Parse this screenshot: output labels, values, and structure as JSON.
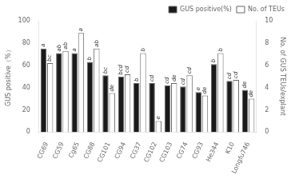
{
  "chart_data": {
    "type": "bar",
    "categories": [
      "CG69",
      "CG59",
      "Cg65",
      "CG88",
      "CG101",
      "CG94",
      "CG37",
      "CG102",
      "CG103",
      "CG74",
      "CG93",
      "He344",
      "K10",
      "Longfu746"
    ],
    "series": [
      {
        "name": "GUS positive(%)",
        "color": "#1a1a1a",
        "values": [
          75,
          71,
          71,
          63,
          51,
          50,
          44,
          44,
          42,
          41,
          36,
          61,
          46,
          38
        ],
        "annotations": [
          "a",
          "ab",
          "a",
          "b",
          "bc",
          "bcd",
          "b",
          "cd",
          "cd",
          "cd",
          "e",
          "b",
          "cd",
          "de"
        ]
      },
      {
        "name": "No. of TEUs",
        "color": "#ffffff",
        "axis": "y2",
        "values": [
          6.2,
          7.3,
          8.9,
          7.5,
          3.5,
          5.2,
          7.1,
          1.0,
          4.4,
          5.1,
          3.3,
          7.1,
          4.7,
          3.0
        ],
        "annotations": [
          "bc",
          "ab",
          "a",
          "ab",
          "de",
          "cd",
          "b",
          "e",
          "de",
          "cd",
          "de",
          "b",
          "cd",
          "de"
        ]
      }
    ],
    "ylabel": "GUS positive（%）",
    "y2label": "No. of GUS TEUs/explant",
    "ylim": [
      0,
      100
    ],
    "yticks": [
      0,
      20,
      40,
      60,
      80,
      100
    ],
    "y2lim": [
      0,
      10
    ],
    "y2ticks": [
      0,
      2,
      4,
      6,
      8,
      10
    ],
    "legend": "upper right",
    "grid": false
  }
}
